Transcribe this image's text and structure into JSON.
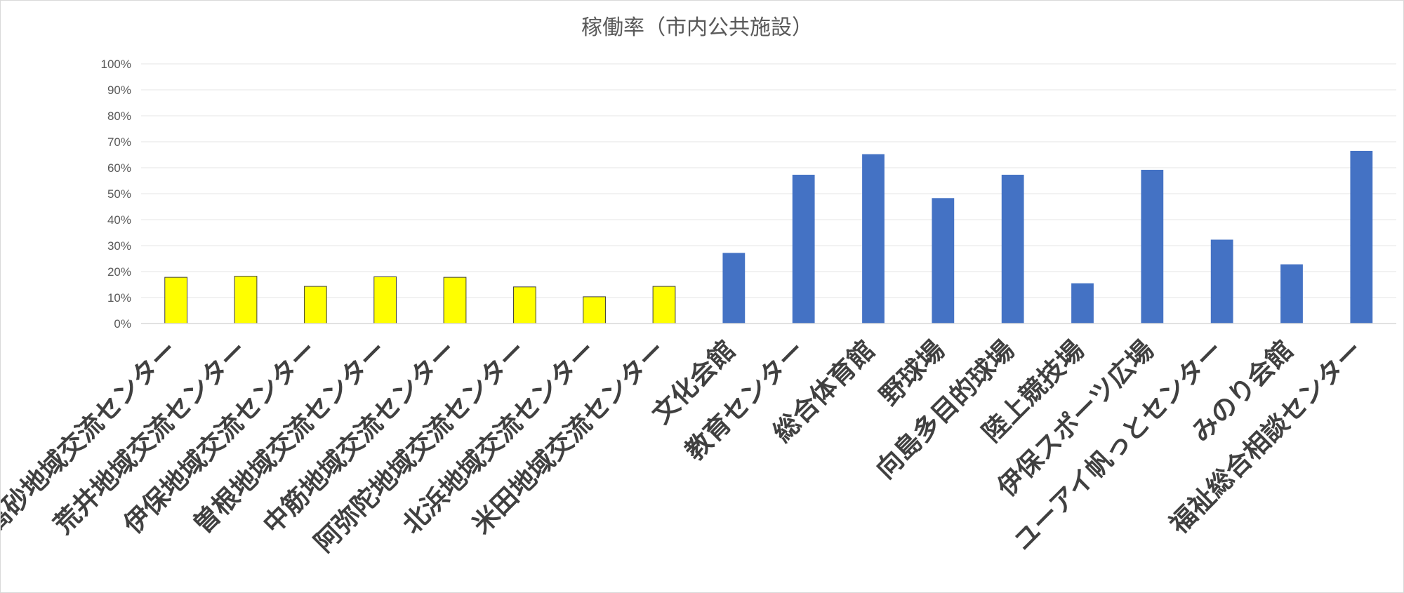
{
  "chart_data": {
    "type": "bar",
    "title": "稼働率（市内公共施設）",
    "xlabel": "",
    "ylabel": "",
    "ylim": [
      0,
      1
    ],
    "yticks": [
      "0%",
      "10%",
      "20%",
      "30%",
      "40%",
      "50%",
      "60%",
      "70%",
      "80%",
      "90%",
      "100%"
    ],
    "categories": [
      "高砂地域交流センター",
      "荒井地域交流センター",
      "伊保地域交流センター",
      "曽根地域交流センター",
      "中筋地域交流センター",
      "阿弥陀地域交流センター",
      "北浜地域交流センター",
      "米田地域交流センター",
      "文化会館",
      "教育センター",
      "総合体育館",
      "野球場",
      "向島多目的球場",
      "陸上競技場",
      "伊保スポーツ広場",
      "ユーアイ帆っとセンター",
      "みのり会館",
      "福祉総合相談センター"
    ],
    "values": [
      0.178,
      0.182,
      0.143,
      0.18,
      0.178,
      0.141,
      0.103,
      0.143,
      0.272,
      0.573,
      0.652,
      0.483,
      0.573,
      0.155,
      0.592,
      0.323,
      0.228,
      0.665
    ],
    "bar_colors": [
      "#ffff00",
      "#ffff00",
      "#ffff00",
      "#ffff00",
      "#ffff00",
      "#ffff00",
      "#ffff00",
      "#ffff00",
      "#4472c4",
      "#4472c4",
      "#4472c4",
      "#4472c4",
      "#4472c4",
      "#4472c4",
      "#4472c4",
      "#4472c4",
      "#4472c4",
      "#4472c4"
    ],
    "bar_outline_colors": [
      "#404040",
      "#404040",
      "#404040",
      "#404040",
      "#404040",
      "#404040",
      "#404040",
      "#404040",
      "none",
      "none",
      "none",
      "none",
      "none",
      "none",
      "none",
      "none",
      "none",
      "none"
    ],
    "grid": true,
    "legend": "none"
  }
}
